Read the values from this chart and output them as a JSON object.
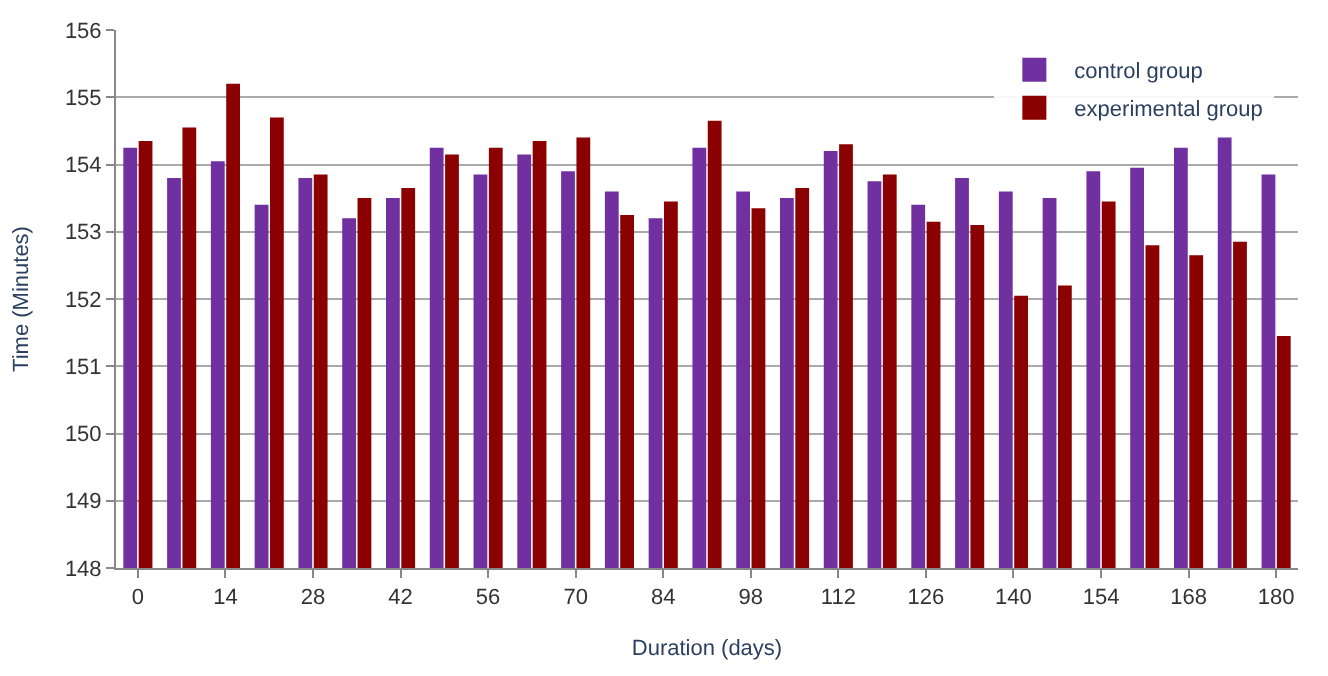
{
  "chart_data": {
    "type": "bar",
    "xlabel": "Duration (days)",
    "ylabel": "Time (Minutes)",
    "categories": [
      "0",
      null,
      "14",
      null,
      "28",
      null,
      "42",
      null,
      "56",
      null,
      "70",
      null,
      "84",
      null,
      "98",
      null,
      "112",
      null,
      "126",
      null,
      "140",
      null,
      "154",
      null,
      "168",
      null,
      "180"
    ],
    "series": [
      {
        "name": "control group",
        "color": "#7030a0",
        "values": [
          154.25,
          153.8,
          154.05,
          153.4,
          153.8,
          153.2,
          153.5,
          154.25,
          153.85,
          154.15,
          153.9,
          153.6,
          153.2,
          154.25,
          153.6,
          153.5,
          154.2,
          153.75,
          153.4,
          153.8,
          153.6,
          153.5,
          153.9,
          153.95,
          154.25,
          154.4,
          153.85
        ]
      },
      {
        "name": "experimental group",
        "color": "#8b0000",
        "values": [
          154.35,
          154.55,
          155.2,
          154.7,
          153.85,
          153.5,
          153.65,
          154.15,
          154.25,
          154.35,
          154.4,
          153.25,
          153.45,
          154.65,
          153.35,
          153.65,
          154.3,
          153.85,
          153.15,
          153.1,
          152.05,
          152.2,
          153.45,
          152.8,
          152.65,
          152.85,
          151.45
        ]
      }
    ],
    "ylim": [
      148,
      156
    ],
    "yticks": [
      148,
      149,
      150,
      151,
      152,
      153,
      154,
      155,
      156
    ],
    "grid": "y",
    "legend": "top right"
  }
}
